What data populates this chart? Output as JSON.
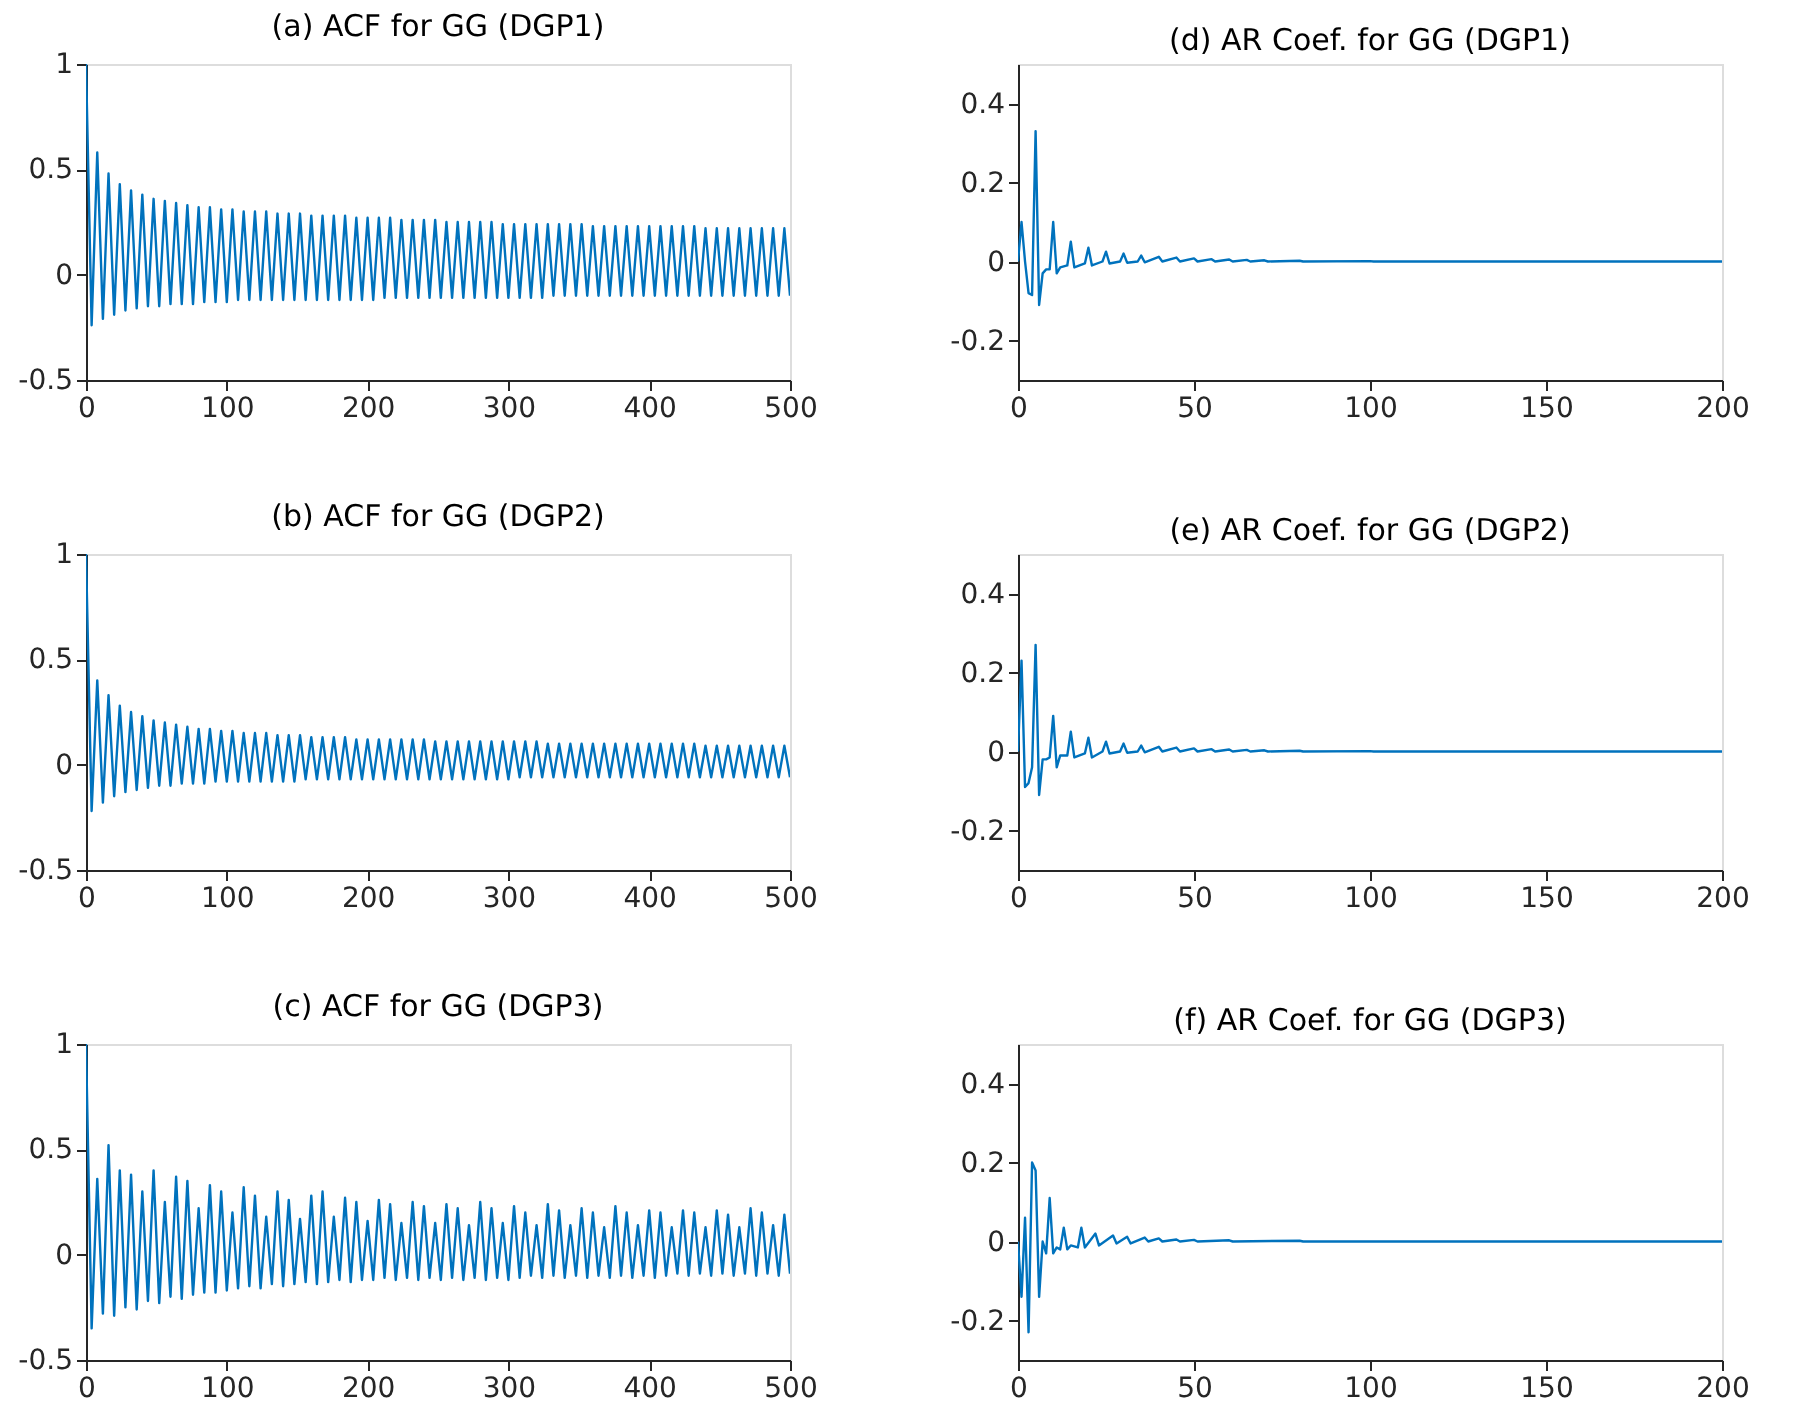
{
  "chart_data": [
    {
      "type": "line",
      "title": "(a) ACF for GG (DGP1)",
      "x": [
        0,
        4,
        8,
        12,
        16,
        20,
        24,
        28,
        32,
        36,
        40,
        44,
        48,
        52,
        56,
        60,
        64,
        68,
        72,
        76,
        80,
        84,
        88,
        92,
        96,
        100,
        104,
        108,
        112,
        116,
        120,
        124,
        128,
        132,
        136,
        140,
        144,
        148,
        152,
        156,
        160,
        164,
        168,
        172,
        176,
        180,
        184,
        188,
        192,
        196,
        200,
        204,
        208,
        212,
        216,
        220,
        224,
        228,
        232,
        236,
        240,
        244,
        248,
        252,
        256,
        260,
        264,
        268,
        272,
        276,
        280,
        284,
        288,
        292,
        296,
        300,
        304,
        308,
        312,
        316,
        320,
        324,
        328,
        332,
        336,
        340,
        344,
        348,
        352,
        356,
        360,
        364,
        368,
        372,
        376,
        380,
        384,
        388,
        392,
        396,
        400,
        404,
        408,
        412,
        416,
        420,
        424,
        428,
        432,
        436,
        440,
        444,
        448,
        452,
        456,
        460,
        464,
        468,
        472,
        476,
        480,
        484,
        488,
        492,
        496,
        500
      ],
      "series": [
        {
          "color": "#0072bd",
          "values": [
            1,
            -0.24,
            0.58,
            -0.21,
            0.48,
            -0.19,
            0.43,
            -0.17,
            0.4,
            -0.16,
            0.38,
            -0.15,
            0.36,
            -0.15,
            0.35,
            -0.14,
            0.34,
            -0.14,
            0.33,
            -0.14,
            0.32,
            -0.13,
            0.32,
            -0.13,
            0.31,
            -0.13,
            0.31,
            -0.12,
            0.3,
            -0.12,
            0.3,
            -0.12,
            0.3,
            -0.12,
            0.29,
            -0.12,
            0.29,
            -0.12,
            0.29,
            -0.12,
            0.28,
            -0.12,
            0.28,
            -0.12,
            0.28,
            -0.12,
            0.28,
            -0.12,
            0.27,
            -0.12,
            0.27,
            -0.12,
            0.27,
            -0.11,
            0.27,
            -0.11,
            0.26,
            -0.11,
            0.26,
            -0.11,
            0.26,
            -0.11,
            0.26,
            -0.11,
            0.25,
            -0.11,
            0.25,
            -0.11,
            0.25,
            -0.11,
            0.25,
            -0.11,
            0.25,
            -0.11,
            0.24,
            -0.11,
            0.24,
            -0.11,
            0.24,
            -0.11,
            0.24,
            -0.11,
            0.24,
            -0.1,
            0.24,
            -0.1,
            0.24,
            -0.1,
            0.24,
            -0.1,
            0.23,
            -0.1,
            0.23,
            -0.1,
            0.23,
            -0.1,
            0.23,
            -0.1,
            0.23,
            -0.1,
            0.23,
            -0.1,
            0.23,
            -0.1,
            0.23,
            -0.1,
            0.23,
            -0.1,
            0.23,
            -0.1,
            0.22,
            -0.1,
            0.22,
            -0.1,
            0.22,
            -0.1,
            0.22,
            -0.1,
            0.22,
            -0.1,
            0.22,
            -0.1,
            0.22,
            -0.1,
            0.22,
            -0.1
          ]
        }
      ],
      "xlim": [
        0,
        500
      ],
      "xticks": [
        0,
        100,
        200,
        300,
        400,
        500
      ],
      "ylim": [
        -0.5,
        1
      ],
      "yticks": [
        -0.5,
        0,
        0.5,
        1
      ],
      "grid": false
    },
    {
      "type": "line",
      "title": "(d) AR Coef. for GG (DGP1)",
      "x": [
        0,
        1,
        2,
        3,
        4,
        5,
        6,
        7,
        8,
        9,
        10,
        11,
        12,
        14,
        15,
        16,
        19,
        20,
        21,
        24,
        25,
        26,
        29,
        30,
        31,
        34,
        35,
        36,
        40,
        41,
        45,
        46,
        50,
        51,
        55,
        56,
        60,
        61,
        65,
        66,
        70,
        71,
        80,
        81,
        100,
        101,
        200
      ],
      "series": [
        {
          "color": "#0072bd",
          "values": [
            0,
            0.1,
            0,
            -0.08,
            -0.085,
            0.33,
            -0.11,
            -0.03,
            -0.02,
            -0.02,
            0.1,
            -0.03,
            -0.015,
            -0.01,
            0.05,
            -0.015,
            -0.005,
            0.035,
            -0.01,
            0,
            0.025,
            -0.005,
            0,
            0.02,
            -0.003,
            0,
            0.015,
            -0.002,
            0.012,
            0,
            0.01,
            0,
            0.008,
            0,
            0.006,
            0,
            0.005,
            0,
            0.004,
            0,
            0.003,
            0,
            0.002,
            0,
            0.001,
            0,
            0
          ]
        }
      ],
      "xlim": [
        0,
        200
      ],
      "xticks": [
        0,
        50,
        100,
        150,
        200
      ],
      "ylim": [
        -0.3,
        0.5
      ],
      "yticks": [
        -0.2,
        0,
        0.2,
        0.4
      ],
      "grid": false
    },
    {
      "type": "line",
      "title": "(b) ACF for GG (DGP2)",
      "x": [
        0,
        4,
        8,
        12,
        16,
        20,
        24,
        28,
        32,
        36,
        40,
        44,
        48,
        52,
        56,
        60,
        64,
        68,
        72,
        76,
        80,
        84,
        88,
        92,
        96,
        100,
        104,
        108,
        112,
        116,
        120,
        124,
        128,
        132,
        136,
        140,
        144,
        148,
        152,
        156,
        160,
        164,
        168,
        172,
        176,
        180,
        184,
        188,
        192,
        196,
        200,
        204,
        208,
        212,
        216,
        220,
        224,
        228,
        232,
        236,
        240,
        244,
        248,
        252,
        256,
        260,
        264,
        268,
        272,
        276,
        280,
        284,
        288,
        292,
        296,
        300,
        304,
        308,
        312,
        316,
        320,
        324,
        328,
        332,
        336,
        340,
        344,
        348,
        352,
        356,
        360,
        364,
        368,
        372,
        376,
        380,
        384,
        388,
        392,
        396,
        400,
        404,
        408,
        412,
        416,
        420,
        424,
        428,
        432,
        436,
        440,
        444,
        448,
        452,
        456,
        460,
        464,
        468,
        472,
        476,
        480,
        484,
        488,
        492,
        496,
        500
      ],
      "series": [
        {
          "color": "#0072bd",
          "values": [
            1,
            -0.22,
            0.4,
            -0.18,
            0.33,
            -0.15,
            0.28,
            -0.13,
            0.25,
            -0.12,
            0.23,
            -0.11,
            0.21,
            -0.1,
            0.2,
            -0.1,
            0.19,
            -0.09,
            0.18,
            -0.09,
            0.17,
            -0.09,
            0.17,
            -0.08,
            0.16,
            -0.08,
            0.16,
            -0.08,
            0.15,
            -0.08,
            0.15,
            -0.08,
            0.15,
            -0.08,
            0.14,
            -0.08,
            0.14,
            -0.08,
            0.14,
            -0.07,
            0.13,
            -0.07,
            0.13,
            -0.07,
            0.13,
            -0.07,
            0.13,
            -0.07,
            0.12,
            -0.07,
            0.12,
            -0.07,
            0.12,
            -0.07,
            0.12,
            -0.07,
            0.12,
            -0.07,
            0.12,
            -0.07,
            0.12,
            -0.07,
            0.11,
            -0.07,
            0.11,
            -0.07,
            0.11,
            -0.07,
            0.11,
            -0.07,
            0.11,
            -0.07,
            0.11,
            -0.07,
            0.11,
            -0.07,
            0.11,
            -0.06,
            0.11,
            -0.06,
            0.11,
            -0.06,
            0.1,
            -0.06,
            0.1,
            -0.06,
            0.1,
            -0.06,
            0.1,
            -0.06,
            0.1,
            -0.06,
            0.1,
            -0.06,
            0.1,
            -0.06,
            0.1,
            -0.06,
            0.1,
            -0.06,
            0.1,
            -0.06,
            0.1,
            -0.06,
            0.1,
            -0.06,
            0.1,
            -0.06,
            0.1,
            -0.06,
            0.09,
            -0.06,
            0.09,
            -0.06,
            0.09,
            -0.06,
            0.09,
            -0.06,
            0.09,
            -0.06,
            0.09,
            -0.06,
            0.09,
            -0.06,
            0.09,
            -0.06
          ]
        }
      ],
      "xlim": [
        0,
        500
      ],
      "xticks": [
        0,
        100,
        200,
        300,
        400,
        500
      ],
      "ylim": [
        -0.5,
        1
      ],
      "yticks": [
        -0.5,
        0,
        0.5,
        1
      ],
      "grid": false
    },
    {
      "type": "line",
      "title": "(e) AR Coef. for GG (DGP2)",
      "x": [
        0,
        1,
        2,
        3,
        4,
        5,
        6,
        7,
        8,
        9,
        10,
        11,
        12,
        14,
        15,
        16,
        19,
        20,
        21,
        24,
        25,
        26,
        29,
        30,
        31,
        34,
        35,
        36,
        40,
        41,
        45,
        46,
        50,
        51,
        55,
        56,
        60,
        61,
        65,
        66,
        70,
        71,
        80,
        81,
        100,
        101,
        200
      ],
      "series": [
        {
          "color": "#0072bd",
          "values": [
            0,
            0.23,
            -0.09,
            -0.08,
            -0.04,
            0.27,
            -0.11,
            -0.02,
            -0.02,
            -0.015,
            0.09,
            -0.04,
            -0.01,
            -0.01,
            0.05,
            -0.015,
            -0.005,
            0.035,
            -0.015,
            0,
            0.025,
            -0.005,
            0,
            0.02,
            -0.003,
            0,
            0.015,
            -0.002,
            0.012,
            0,
            0.01,
            0,
            0.008,
            0,
            0.006,
            0,
            0.005,
            0,
            0.004,
            0,
            0.003,
            0,
            0.002,
            0,
            0.001,
            0,
            0
          ]
        }
      ],
      "xlim": [
        0,
        200
      ],
      "xticks": [
        0,
        50,
        100,
        150,
        200
      ],
      "ylim": [
        -0.3,
        0.5
      ],
      "yticks": [
        -0.2,
        0,
        0.2,
        0.4
      ],
      "grid": false
    },
    {
      "type": "line",
      "title": "(c) ACF for GG (DGP3)",
      "x": [
        0,
        4,
        8,
        12,
        16,
        20,
        24,
        28,
        32,
        36,
        40,
        44,
        48,
        52,
        56,
        60,
        64,
        68,
        72,
        76,
        80,
        84,
        88,
        92,
        96,
        100,
        104,
        108,
        112,
        116,
        120,
        124,
        128,
        132,
        136,
        140,
        144,
        148,
        152,
        156,
        160,
        164,
        168,
        172,
        176,
        180,
        184,
        188,
        192,
        196,
        200,
        204,
        208,
        212,
        216,
        220,
        224,
        228,
        232,
        236,
        240,
        244,
        248,
        252,
        256,
        260,
        264,
        268,
        272,
        276,
        280,
        284,
        288,
        292,
        296,
        300,
        304,
        308,
        312,
        316,
        320,
        324,
        328,
        332,
        336,
        340,
        344,
        348,
        352,
        356,
        360,
        364,
        368,
        372,
        376,
        380,
        384,
        388,
        392,
        396,
        400,
        404,
        408,
        412,
        416,
        420,
        424,
        428,
        432,
        436,
        440,
        444,
        448,
        452,
        456,
        460,
        464,
        468,
        472,
        476,
        480,
        484,
        488,
        492,
        496,
        500
      ],
      "series": [
        {
          "color": "#0072bd",
          "values": [
            1,
            -0.35,
            0.36,
            -0.28,
            0.52,
            -0.29,
            0.4,
            -0.25,
            0.38,
            -0.26,
            0.3,
            -0.22,
            0.4,
            -0.23,
            0.25,
            -0.2,
            0.37,
            -0.21,
            0.35,
            -0.19,
            0.22,
            -0.18,
            0.33,
            -0.18,
            0.3,
            -0.17,
            0.2,
            -0.16,
            0.32,
            -0.15,
            0.28,
            -0.16,
            0.18,
            -0.14,
            0.3,
            -0.15,
            0.26,
            -0.14,
            0.17,
            -0.13,
            0.28,
            -0.14,
            0.3,
            -0.13,
            0.18,
            -0.12,
            0.27,
            -0.13,
            0.25,
            -0.12,
            0.16,
            -0.12,
            0.26,
            -0.11,
            0.24,
            -0.12,
            0.15,
            -0.11,
            0.25,
            -0.12,
            0.23,
            -0.11,
            0.15,
            -0.12,
            0.24,
            -0.11,
            0.22,
            -0.12,
            0.14,
            -0.11,
            0.25,
            -0.12,
            0.22,
            -0.11,
            0.15,
            -0.12,
            0.23,
            -0.11,
            0.2,
            -0.1,
            0.14,
            -0.11,
            0.24,
            -0.1,
            0.21,
            -0.11,
            0.14,
            -0.1,
            0.22,
            -0.11,
            0.2,
            -0.1,
            0.13,
            -0.11,
            0.23,
            -0.1,
            0.2,
            -0.11,
            0.14,
            -0.1,
            0.21,
            -0.11,
            0.2,
            -0.1,
            0.13,
            -0.09,
            0.21,
            -0.1,
            0.2,
            -0.09,
            0.13,
            -0.1,
            0.21,
            -0.09,
            0.19,
            -0.1,
            0.13,
            -0.09,
            0.22,
            -0.1,
            0.2,
            -0.09,
            0.14,
            -0.1,
            0.19,
            -0.09
          ]
        }
      ],
      "xlim": [
        0,
        500
      ],
      "xticks": [
        0,
        100,
        200,
        300,
        400,
        500
      ],
      "ylim": [
        -0.5,
        1
      ],
      "yticks": [
        -0.5,
        0,
        0.5,
        1
      ],
      "grid": false
    },
    {
      "type": "line",
      "title": "(f) AR Coef. for GG (DGP3)",
      "x": [
        0,
        1,
        2,
        3,
        4,
        5,
        6,
        7,
        8,
        9,
        10,
        11,
        12,
        13,
        14,
        15,
        17,
        18,
        19,
        22,
        23,
        27,
        28,
        31,
        32,
        36,
        37,
        40,
        41,
        45,
        46,
        50,
        51,
        60,
        61,
        80,
        81,
        200
      ],
      "series": [
        {
          "color": "#0072bd",
          "values": [
            0,
            -0.14,
            0.06,
            -0.23,
            0.2,
            0.18,
            -0.14,
            0,
            -0.03,
            0.11,
            -0.03,
            -0.015,
            -0.02,
            0.035,
            -0.02,
            -0.01,
            -0.015,
            0.035,
            -0.015,
            0.02,
            -0.01,
            0.015,
            -0.005,
            0.012,
            -0.005,
            0.01,
            0,
            0.008,
            0,
            0.005,
            0,
            0.004,
            0,
            0.003,
            0,
            0.002,
            0,
            0
          ]
        }
      ],
      "xlim": [
        0,
        200
      ],
      "xticks": [
        0,
        50,
        100,
        150,
        200
      ],
      "ylim": [
        -0.3,
        0.5
      ],
      "yticks": [
        -0.2,
        0,
        0.2,
        0.4
      ],
      "grid": false
    }
  ]
}
